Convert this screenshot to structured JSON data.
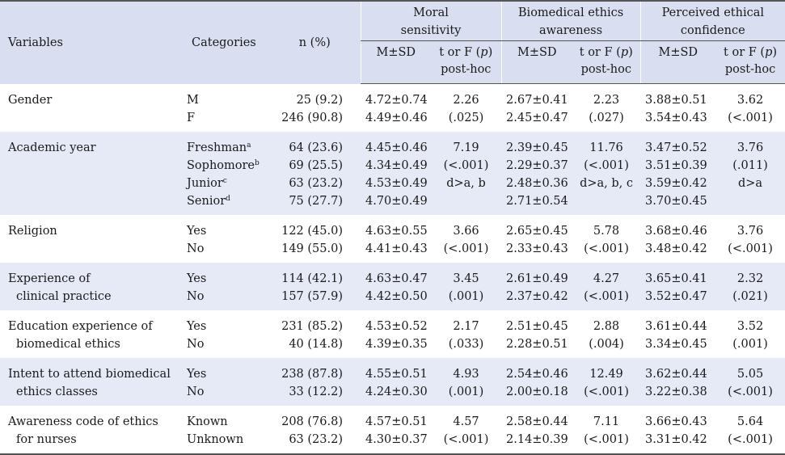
{
  "header": {
    "variables": "Variables",
    "categories": "Categories",
    "n": "n (%)",
    "groups": [
      {
        "line1": "Moral",
        "line2": "sensitivity"
      },
      {
        "line1": "Biomedical ethics",
        "line2": "awareness"
      },
      {
        "line1": "Perceived ethical",
        "line2": "confidence"
      }
    ],
    "msd": "M±SD",
    "test_prefix": "t or F (",
    "test_p": "p",
    "test_suffix": ")",
    "posthoc": "post-hoc"
  },
  "rows": [
    {
      "variable": [
        "Gender"
      ],
      "categories": [
        {
          "text": "M",
          "sup": ""
        },
        {
          "text": "F",
          "sup": ""
        }
      ],
      "n": [
        "25 (9.2)",
        "246 (90.8)"
      ],
      "moral": {
        "msd": [
          "4.72±0.74",
          "4.49±0.46"
        ],
        "test": [
          "2.26",
          "(.025)"
        ]
      },
      "bio": {
        "msd": [
          "2.67±0.41",
          "2.45±0.47"
        ],
        "test": [
          "2.23",
          "(.027)"
        ]
      },
      "conf": {
        "msd": [
          "3.88±0.51",
          "3.54±0.43"
        ],
        "test": [
          "3.62",
          "(<.001)"
        ]
      }
    },
    {
      "variable": [
        "Academic year"
      ],
      "categories": [
        {
          "text": "Freshman",
          "sup": "a"
        },
        {
          "text": "Sophomore",
          "sup": "b"
        },
        {
          "text": "Junior",
          "sup": "c"
        },
        {
          "text": "Senior",
          "sup": "d"
        }
      ],
      "n": [
        "64 (23.6)",
        "69 (25.5)",
        "63 (23.2)",
        "75 (27.7)"
      ],
      "moral": {
        "msd": [
          "4.45±0.46",
          "4.34±0.49",
          "4.53±0.49",
          "4.70±0.49"
        ],
        "test": [
          "7.19",
          "(<.001)",
          "d>a, b"
        ]
      },
      "bio": {
        "msd": [
          "2.39±0.45",
          "2.29±0.37",
          "2.48±0.36",
          "2.71±0.54"
        ],
        "test": [
          "11.76",
          "(<.001)",
          "d>a, b, c"
        ]
      },
      "conf": {
        "msd": [
          "3.47±0.52",
          "3.51±0.39",
          "3.59±0.42",
          "3.70±0.45"
        ],
        "test": [
          "3.76",
          "(.011)",
          "d>a"
        ]
      }
    },
    {
      "variable": [
        "Religion"
      ],
      "categories": [
        {
          "text": "Yes",
          "sup": ""
        },
        {
          "text": "No",
          "sup": ""
        }
      ],
      "n": [
        "122 (45.0)",
        "149 (55.0)"
      ],
      "moral": {
        "msd": [
          "4.63±0.55",
          "4.41±0.43"
        ],
        "test": [
          "3.66",
          "(<.001)"
        ]
      },
      "bio": {
        "msd": [
          "2.65±0.45",
          "2.33±0.43"
        ],
        "test": [
          "5.78",
          "(<.001)"
        ]
      },
      "conf": {
        "msd": [
          "3.68±0.46",
          "3.48±0.42"
        ],
        "test": [
          "3.76",
          "(<.001)"
        ]
      }
    },
    {
      "variable": [
        "Experience of",
        "clinical practice"
      ],
      "categories": [
        {
          "text": "Yes",
          "sup": ""
        },
        {
          "text": "No",
          "sup": ""
        }
      ],
      "n": [
        "114 (42.1)",
        "157 (57.9)"
      ],
      "moral": {
        "msd": [
          "4.63±0.47",
          "4.42±0.50"
        ],
        "test": [
          "3.45",
          "(.001)"
        ]
      },
      "bio": {
        "msd": [
          "2.61±0.49",
          "2.37±0.42"
        ],
        "test": [
          "4.27",
          "(<.001)"
        ]
      },
      "conf": {
        "msd": [
          "3.65±0.41",
          "3.52±0.47"
        ],
        "test": [
          "2.32",
          "(.021)"
        ]
      }
    },
    {
      "variable": [
        "Education experience of",
        "biomedical ethics"
      ],
      "categories": [
        {
          "text": "Yes",
          "sup": ""
        },
        {
          "text": "No",
          "sup": ""
        }
      ],
      "n": [
        "231 (85.2)",
        "40 (14.8)"
      ],
      "moral": {
        "msd": [
          "4.53±0.52",
          "4.39±0.35"
        ],
        "test": [
          "2.17",
          "(.033)"
        ]
      },
      "bio": {
        "msd": [
          "2.51±0.45",
          "2.28±0.51"
        ],
        "test": [
          "2.88",
          "(.004)"
        ]
      },
      "conf": {
        "msd": [
          "3.61±0.44",
          "3.34±0.45"
        ],
        "test": [
          "3.52",
          "(.001)"
        ]
      }
    },
    {
      "variable": [
        "Intent to attend biomedical",
        "ethics classes"
      ],
      "categories": [
        {
          "text": "Yes",
          "sup": ""
        },
        {
          "text": "No",
          "sup": ""
        }
      ],
      "n": [
        "238 (87.8)",
        "33 (12.2)"
      ],
      "moral": {
        "msd": [
          "4.55±0.51",
          "4.24±0.30"
        ],
        "test": [
          "4.93",
          "(.001)"
        ]
      },
      "bio": {
        "msd": [
          "2.54±0.46",
          "2.00±0.18"
        ],
        "test": [
          "12.49",
          "(<.001)"
        ]
      },
      "conf": {
        "msd": [
          "3.62±0.44",
          "3.22±0.38"
        ],
        "test": [
          "5.05",
          "(<.001)"
        ]
      }
    },
    {
      "variable": [
        "Awareness code of ethics",
        "for nurses"
      ],
      "categories": [
        {
          "text": "Known",
          "sup": ""
        },
        {
          "text": "Unknown",
          "sup": ""
        }
      ],
      "n": [
        "208 (76.8)",
        "63 (23.2)"
      ],
      "moral": {
        "msd": [
          "4.57±0.51",
          "4.30±0.37"
        ],
        "test": [
          "4.57",
          "(<.001)"
        ]
      },
      "bio": {
        "msd": [
          "2.58±0.44",
          "2.14±0.39"
        ],
        "test": [
          "7.11",
          "(<.001)"
        ]
      },
      "conf": {
        "msd": [
          "3.66±0.43",
          "3.31±0.42"
        ],
        "test": [
          "5.64",
          "(<.001)"
        ]
      }
    }
  ]
}
